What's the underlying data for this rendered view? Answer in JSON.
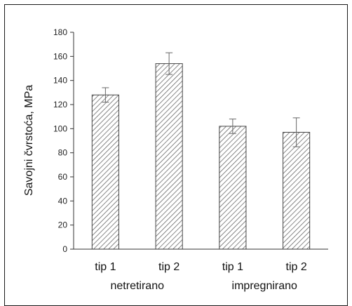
{
  "chart_data": {
    "type": "bar",
    "title": "",
    "xlabel": "",
    "ylabel": "Savojni čvrstoća, MPa",
    "ylim": [
      0,
      180
    ],
    "yticks": [
      0,
      20,
      40,
      60,
      80,
      100,
      120,
      140,
      160,
      180
    ],
    "categories": [
      "tip 1",
      "tip 2",
      "tip 1",
      "tip 2"
    ],
    "groups": [
      "netretirano",
      "impregnirano"
    ],
    "values": [
      128,
      154,
      102,
      97
    ],
    "error": [
      6,
      9,
      6,
      12
    ],
    "grid": false,
    "bar_fill": "hatched",
    "colors": {
      "bar_stroke": "#444444",
      "hatch": "#555555",
      "axis": "#333333"
    }
  }
}
